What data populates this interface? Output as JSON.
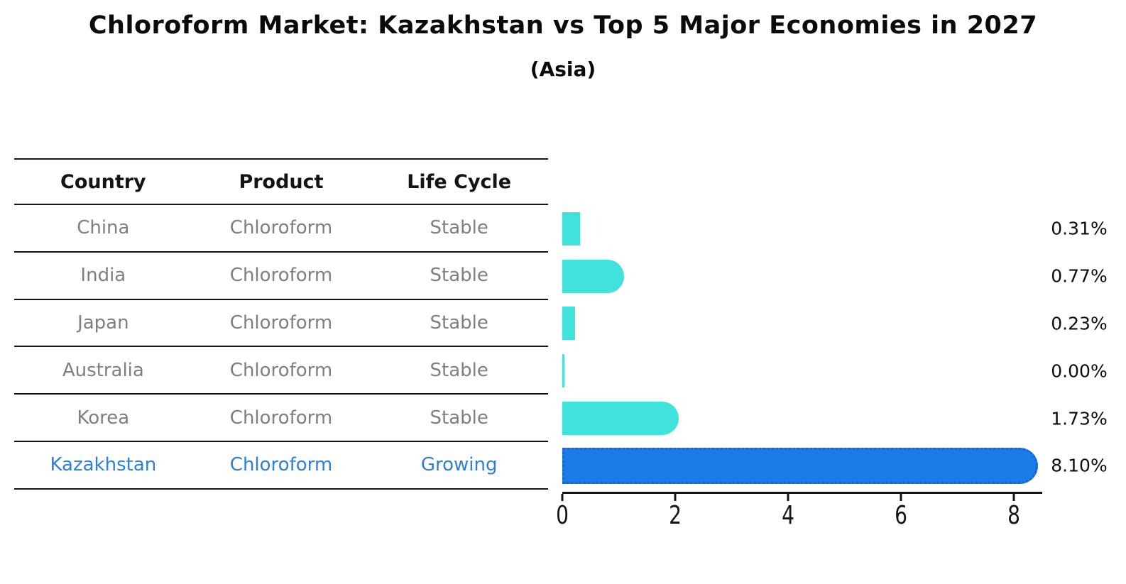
{
  "header": {
    "title": "Chloroform Market: Kazakhstan vs Top 5 Major Economies in 2027",
    "subtitle": "(Asia)"
  },
  "table": {
    "headers": [
      "Country",
      "Product",
      "Life Cycle"
    ],
    "rows": [
      {
        "country": "China",
        "product": "Chloroform",
        "life_cycle": "Stable"
      },
      {
        "country": "India",
        "product": "Chloroform",
        "life_cycle": "Stable"
      },
      {
        "country": "Japan",
        "product": "Chloroform",
        "life_cycle": "Stable"
      },
      {
        "country": "Australia",
        "product": "Chloroform",
        "life_cycle": "Stable"
      },
      {
        "country": "Korea",
        "product": "Chloroform",
        "life_cycle": "Stable"
      },
      {
        "country": "Kazakhstan",
        "product": "Chloroform",
        "life_cycle": "Growing"
      }
    ],
    "highlighted_row": "Kazakhstan"
  },
  "chart_data": {
    "type": "bar",
    "orientation": "horizontal",
    "title": "Chloroform Market: Kazakhstan vs Top 5 Major Economies in 2027",
    "subtitle": "(Asia)",
    "categories": [
      "China",
      "India",
      "Japan",
      "Australia",
      "Korea",
      "Kazakhstan"
    ],
    "values": [
      0.31,
      0.77,
      0.23,
      0.0,
      1.73,
      8.1
    ],
    "value_labels": [
      "0.31%",
      "0.77%",
      "0.23%",
      "0.00%",
      "1.73%",
      "8.10%"
    ],
    "unit": "%",
    "x_ticks": [
      0,
      2,
      4,
      6,
      8
    ],
    "x_tick_labels": [
      "0",
      "2",
      "4",
      "6",
      "8"
    ],
    "xlim": [
      0,
      8.5
    ],
    "grid": false,
    "legend": false,
    "highlight_index": 5,
    "bar_color": "#40e2db",
    "highlight_bar_color": "#1b7ce8",
    "highlight_border_color": "#1162d6"
  },
  "colors": {
    "background": "#ffffff",
    "title_text": "#0a0a0a",
    "table_header_text": "#141414",
    "table_body_text": "#7f7f7f",
    "highlight_text": "#2e7fd9",
    "axis": "#141414",
    "value_label_text": "#0d0d0d"
  }
}
